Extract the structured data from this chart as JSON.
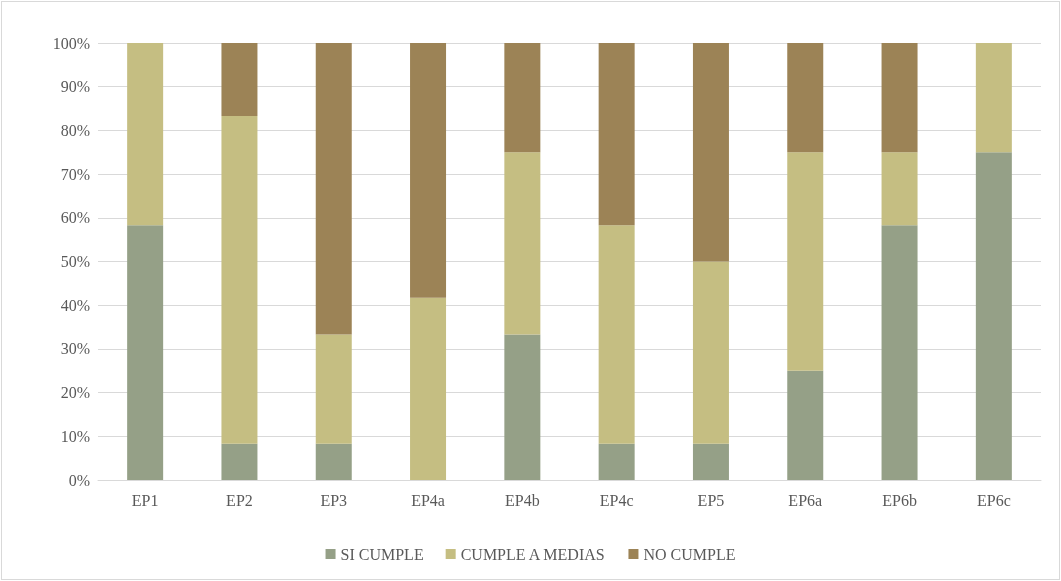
{
  "chart_data": {
    "type": "bar",
    "stacked": true,
    "categories": [
      "EP1",
      "EP2",
      "EP3",
      "EP4a",
      "EP4b",
      "EP4c",
      "EP5",
      "EP6a",
      "EP6b",
      "EP6c"
    ],
    "series": [
      {
        "name": "SI CUMPLE",
        "color": "#95a087",
        "values": [
          58.3,
          8.3,
          8.3,
          0,
          33.3,
          8.3,
          8.3,
          25,
          58.3,
          75
        ]
      },
      {
        "name": "CUMPLE A MEDIAS",
        "color": "#c5be82",
        "values": [
          41.7,
          75,
          25,
          41.7,
          41.7,
          50,
          41.7,
          50,
          16.7,
          25
        ]
      },
      {
        "name": "NO CUMPLE",
        "color": "#9c8356",
        "values": [
          0,
          16.7,
          66.7,
          58.3,
          25,
          41.7,
          50,
          25,
          25,
          0
        ]
      }
    ],
    "ylim": [
      0,
      100
    ],
    "yticks": [
      {
        "value": 0,
        "label": "0%"
      },
      {
        "value": 10,
        "label": "10%"
      },
      {
        "value": 20,
        "label": "20%"
      },
      {
        "value": 30,
        "label": "30%"
      },
      {
        "value": 40,
        "label": "40%"
      },
      {
        "value": 50,
        "label": "50%"
      },
      {
        "value": 60,
        "label": "60%"
      },
      {
        "value": 70,
        "label": "70%"
      },
      {
        "value": 80,
        "label": "80%"
      },
      {
        "value": 90,
        "label": "90%"
      },
      {
        "value": 100,
        "label": "100%"
      }
    ],
    "grid": "y",
    "legend": "bottom"
  }
}
